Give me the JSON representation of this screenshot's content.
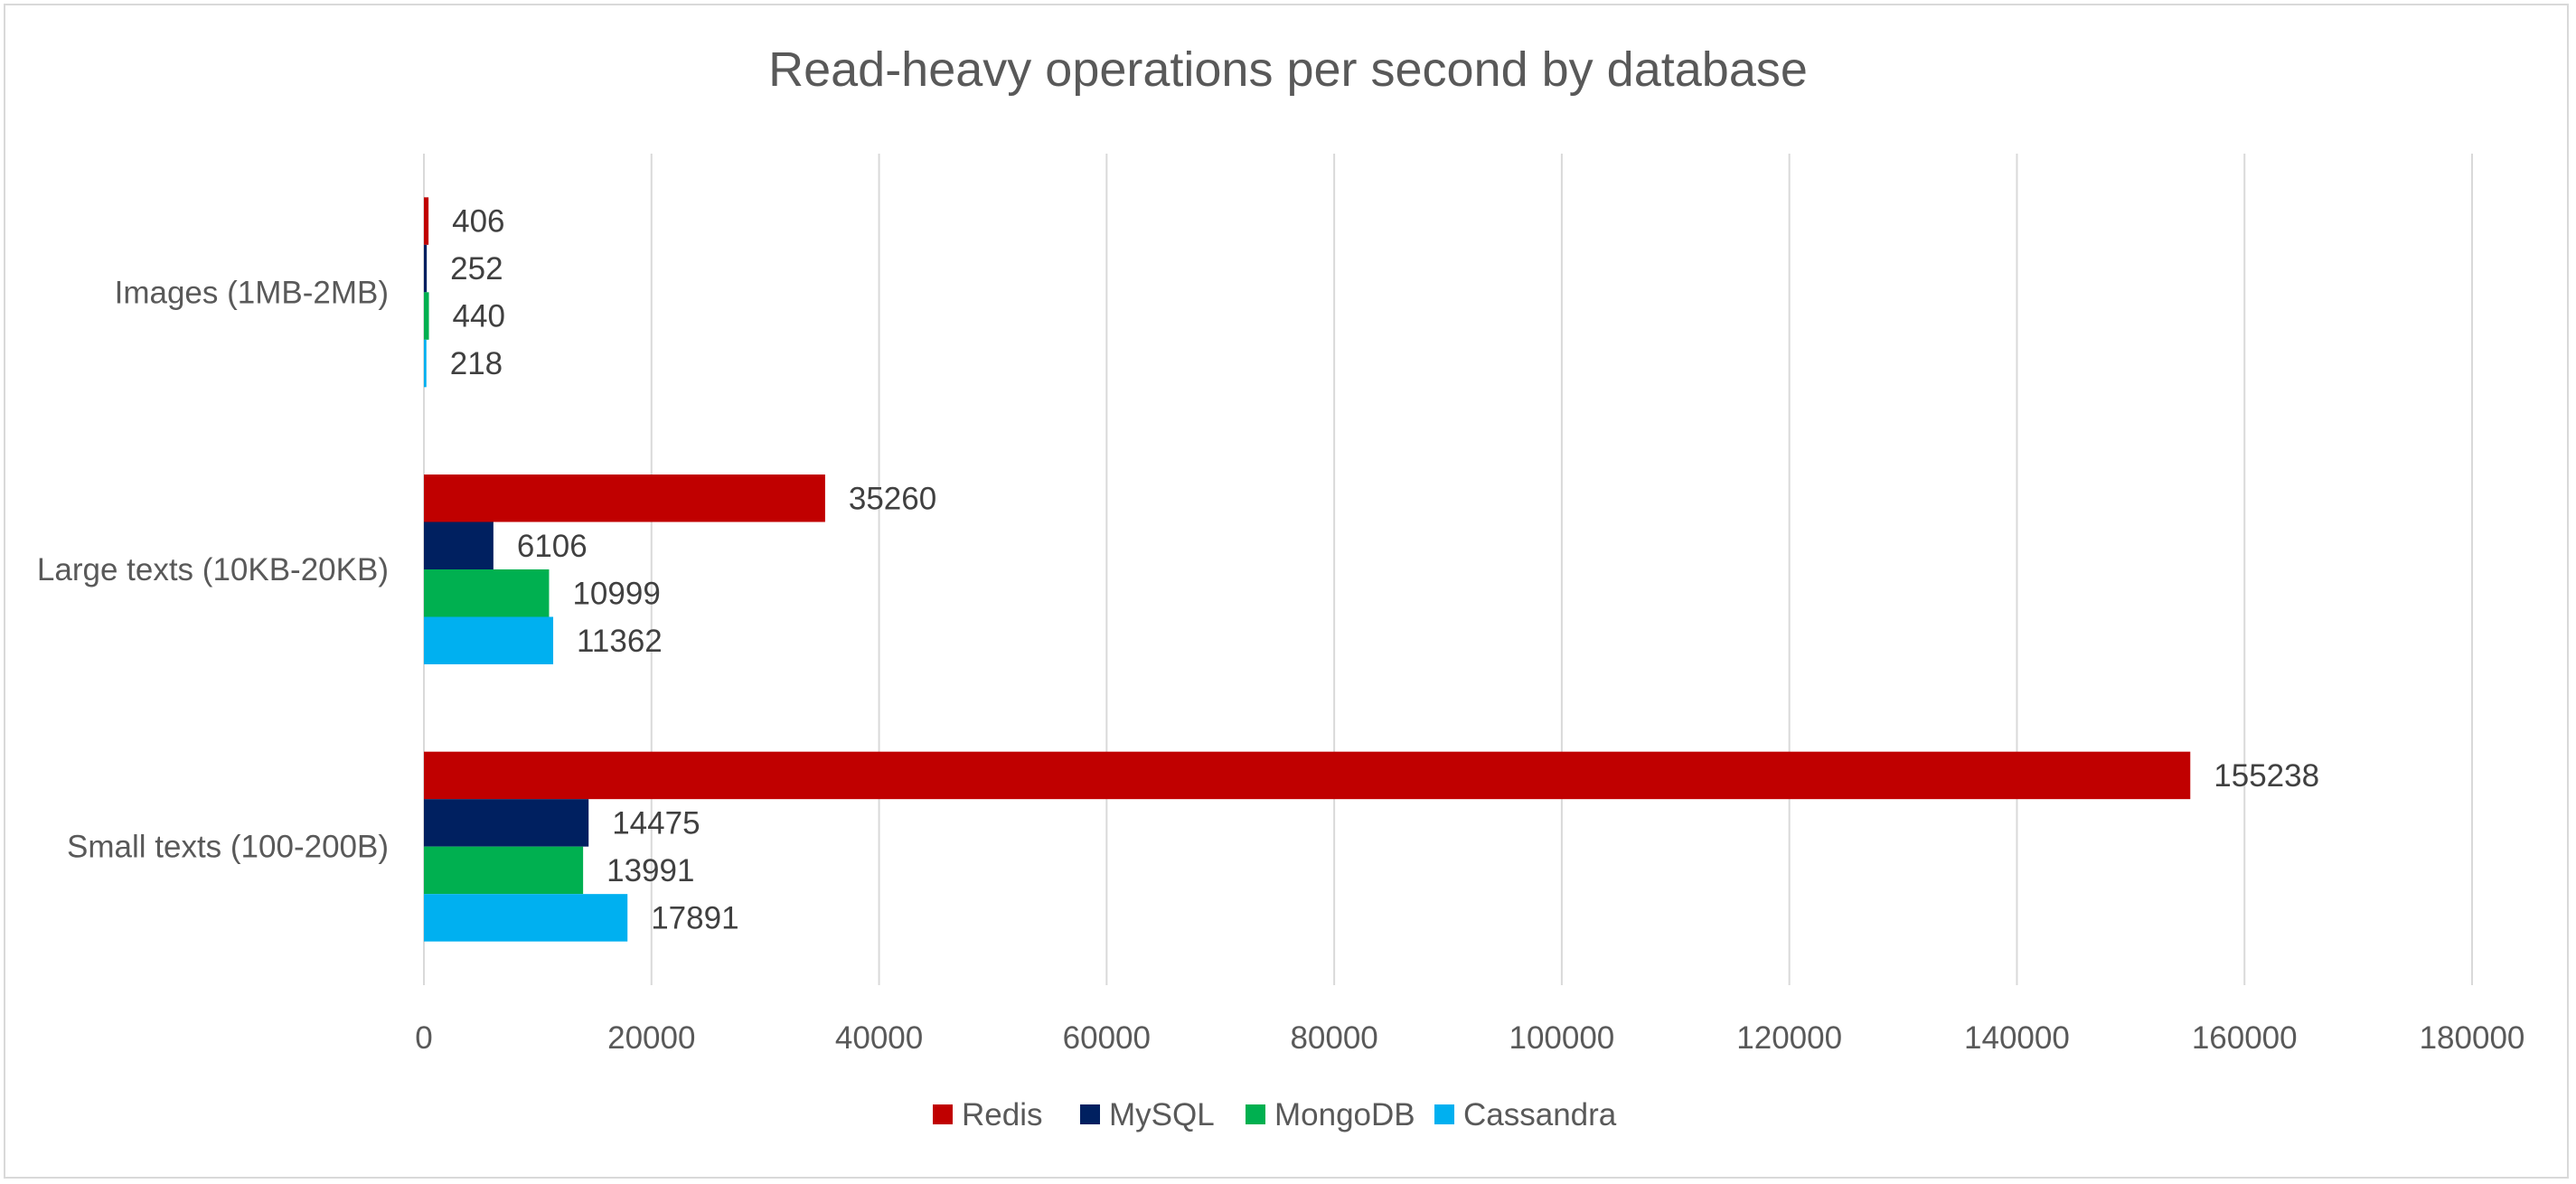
{
  "chart_data": {
    "type": "bar",
    "orientation": "horizontal",
    "title": "Read-heavy operations per second by database",
    "categories": [
      "Images  (1MB-2MB)",
      "Large texts (10KB-20KB)",
      "Small texts (100-200B)"
    ],
    "series": [
      {
        "name": "Redis",
        "color": "#c00000",
        "values": [
          406,
          35260,
          155238
        ]
      },
      {
        "name": "MySQL",
        "color": "#002060",
        "values": [
          252,
          6106,
          14475
        ]
      },
      {
        "name": "MongoDB",
        "color": "#00b050",
        "values": [
          440,
          10999,
          13991
        ]
      },
      {
        "name": "Cassandra",
        "color": "#00b0f0",
        "values": [
          218,
          11362,
          17891
        ]
      }
    ],
    "xlim": [
      0,
      180000
    ],
    "x_ticks": [
      0,
      20000,
      40000,
      60000,
      80000,
      100000,
      120000,
      140000,
      160000,
      180000
    ],
    "grid": true,
    "legend_position": "bottom",
    "data_labels": true
  },
  "colors": {
    "gridline": "#d9d9d9",
    "axis_text": "#595959",
    "label_text": "#404040"
  }
}
